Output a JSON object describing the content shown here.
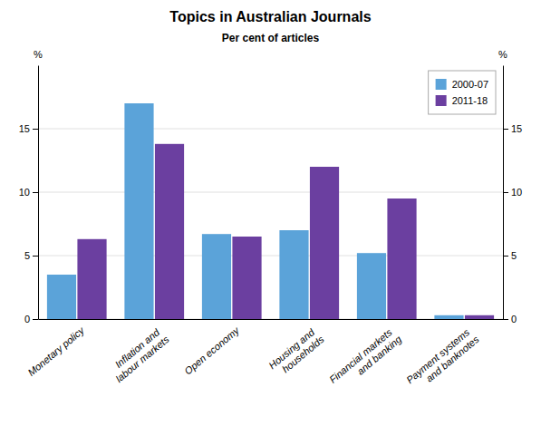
{
  "chart_data": {
    "type": "bar",
    "title": "Topics in Australian Journals",
    "subtitle": "Per cent of articles",
    "categories": [
      "Monetary policy",
      "Inflation and\nlabour markets",
      "Open economy",
      "Housing and\nhouseholds",
      "Financial markets\nand banking",
      "Payment systems\nand banknotes"
    ],
    "series": [
      {
        "name": "2000-07",
        "color": "#5BA3D9",
        "values": [
          3.5,
          17.0,
          6.7,
          7.0,
          5.2,
          0.3
        ]
      },
      {
        "name": "2011-18",
        "color": "#6B3FA0",
        "values": [
          6.3,
          13.8,
          6.5,
          12.0,
          9.5,
          0.3
        ]
      }
    ],
    "ylim": [
      0,
      20
    ],
    "yticks": [
      0,
      5,
      10,
      15
    ],
    "y2lim": [
      0,
      20
    ],
    "y2ticks": [
      0,
      5,
      10,
      15
    ],
    "ylabel": "%",
    "y2label": "%",
    "grid": true,
    "legend": "upper right"
  }
}
